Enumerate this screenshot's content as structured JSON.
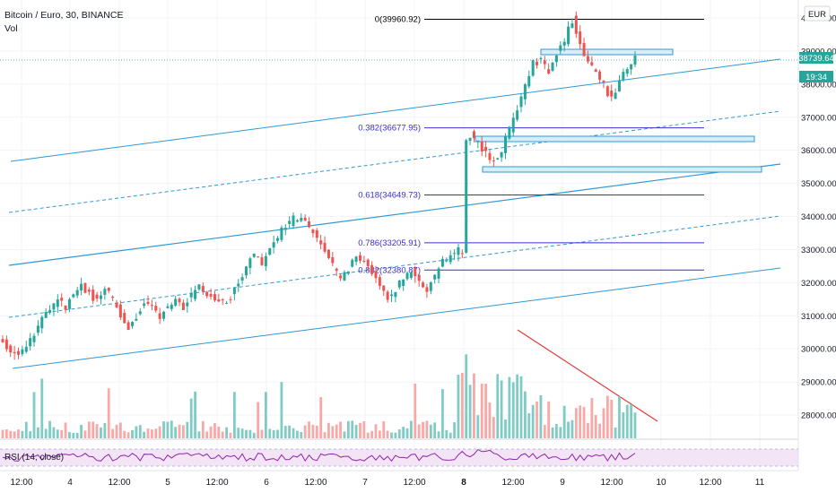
{
  "header": {
    "symbol_title": "Bitcoin / Euro, 30, BINANCE",
    "vol_label": "Vol",
    "currency_button": "EUR"
  },
  "price_axis": {
    "ticks": [
      "40000.00",
      "39000.00",
      "38000.00",
      "37000.00",
      "36000.00",
      "35000.00",
      "34000.00",
      "33000.00",
      "32000.00",
      "31000.00",
      "30000.00",
      "29000.00",
      "28000.00"
    ],
    "last_price": "38739.64",
    "countdown": "19:34",
    "accent": "#26a69a"
  },
  "time_axis": {
    "ticks": [
      "12:00",
      "4",
      "12:00",
      "5",
      "12:00",
      "6",
      "12:00",
      "7",
      "12:00",
      "8",
      "12:00",
      "9",
      "12:00",
      "10",
      "12:00",
      "11"
    ],
    "bold_tick": "8"
  },
  "fib_levels": [
    {
      "label": "0(39960.92)",
      "price": 39960.92,
      "color": "#000000"
    },
    {
      "label": "0.382(36677.95)",
      "price": 36677.95,
      "color": "#3b2fc9"
    },
    {
      "label": "0.618(34649.73)",
      "price": 34649.73,
      "color": "#3b2fc9"
    },
    {
      "label": "0.786(33205.91)",
      "price": 33205.91,
      "color": "#3b2fc9"
    },
    {
      "label": "0.882(32380.87)",
      "price": 32380.87,
      "color": "#3b2fc9"
    }
  ],
  "rsi": {
    "label": "RSI (14, close)",
    "line_color": "#8e24aa",
    "band_color": "#f3e5f5"
  },
  "colors": {
    "up": "#26a69a",
    "down": "#ef5350",
    "channel": "#2f98d6",
    "trend": "#e53935",
    "grid": "#f0f3fa"
  },
  "chart_data": {
    "type": "candlestick",
    "title": "Bitcoin / Euro, 30, BINANCE",
    "xlabel": "",
    "ylabel": "",
    "ylim": [
      27800,
      40400
    ],
    "x_ticks": [
      "12:00",
      "4",
      "12:00",
      "5",
      "12:00",
      "6",
      "12:00",
      "7",
      "12:00",
      "8",
      "12:00",
      "9",
      "12:00",
      "10",
      "12:00",
      "11"
    ],
    "last_price": 38739.64,
    "close_path": [
      [
        0,
        30200
      ],
      [
        2,
        30000
      ],
      [
        4,
        29900
      ],
      [
        6,
        30100
      ],
      [
        8,
        30500
      ],
      [
        10,
        30900
      ],
      [
        12,
        31200
      ],
      [
        14,
        31500
      ],
      [
        16,
        31300
      ],
      [
        18,
        31700
      ],
      [
        20,
        31900
      ],
      [
        22,
        31700
      ],
      [
        24,
        31400
      ],
      [
        26,
        31800
      ],
      [
        28,
        31500
      ],
      [
        30,
        31000
      ],
      [
        32,
        30600
      ],
      [
        34,
        31000
      ],
      [
        36,
        31400
      ],
      [
        38,
        31200
      ],
      [
        40,
        31000
      ],
      [
        42,
        31300
      ],
      [
        44,
        31500
      ],
      [
        46,
        31300
      ],
      [
        48,
        31600
      ],
      [
        50,
        31900
      ],
      [
        52,
        31700
      ],
      [
        54,
        31500
      ],
      [
        56,
        31400
      ],
      [
        58,
        31600
      ],
      [
        60,
        32000
      ],
      [
        62,
        32500
      ],
      [
        64,
        32900
      ],
      [
        66,
        32600
      ],
      [
        68,
        33000
      ],
      [
        70,
        33400
      ],
      [
        72,
        33700
      ],
      [
        74,
        33900
      ],
      [
        76,
        34000
      ],
      [
        78,
        33700
      ],
      [
        80,
        33300
      ],
      [
        82,
        32900
      ],
      [
        84,
        32500
      ],
      [
        86,
        32100
      ],
      [
        88,
        32400
      ],
      [
        90,
        32900
      ],
      [
        92,
        32600
      ],
      [
        94,
        32300
      ],
      [
        96,
        31900
      ],
      [
        98,
        31500
      ],
      [
        100,
        31800
      ],
      [
        102,
        32100
      ],
      [
        104,
        32400
      ],
      [
        106,
        32000
      ],
      [
        108,
        31800
      ],
      [
        110,
        32200
      ],
      [
        112,
        32600
      ],
      [
        114,
        32800
      ],
      [
        116,
        33000
      ],
      [
        117,
        33000
      ],
      [
        118,
        36200
      ],
      [
        119,
        36500
      ],
      [
        121,
        36200
      ],
      [
        123,
        35900
      ],
      [
        125,
        35700
      ],
      [
        127,
        36000
      ],
      [
        129,
        36600
      ],
      [
        131,
        37300
      ],
      [
        133,
        38000
      ],
      [
        135,
        38600
      ],
      [
        137,
        38700
      ],
      [
        139,
        38400
      ],
      [
        141,
        38900
      ],
      [
        143,
        39300
      ],
      [
        145,
        39960
      ],
      [
        147,
        39200
      ],
      [
        149,
        38700
      ],
      [
        151,
        38400
      ],
      [
        153,
        38000
      ],
      [
        155,
        37500
      ],
      [
        157,
        38200
      ],
      [
        159,
        38500
      ],
      [
        161,
        38740
      ]
    ],
    "volume_peak_index": 118
  }
}
